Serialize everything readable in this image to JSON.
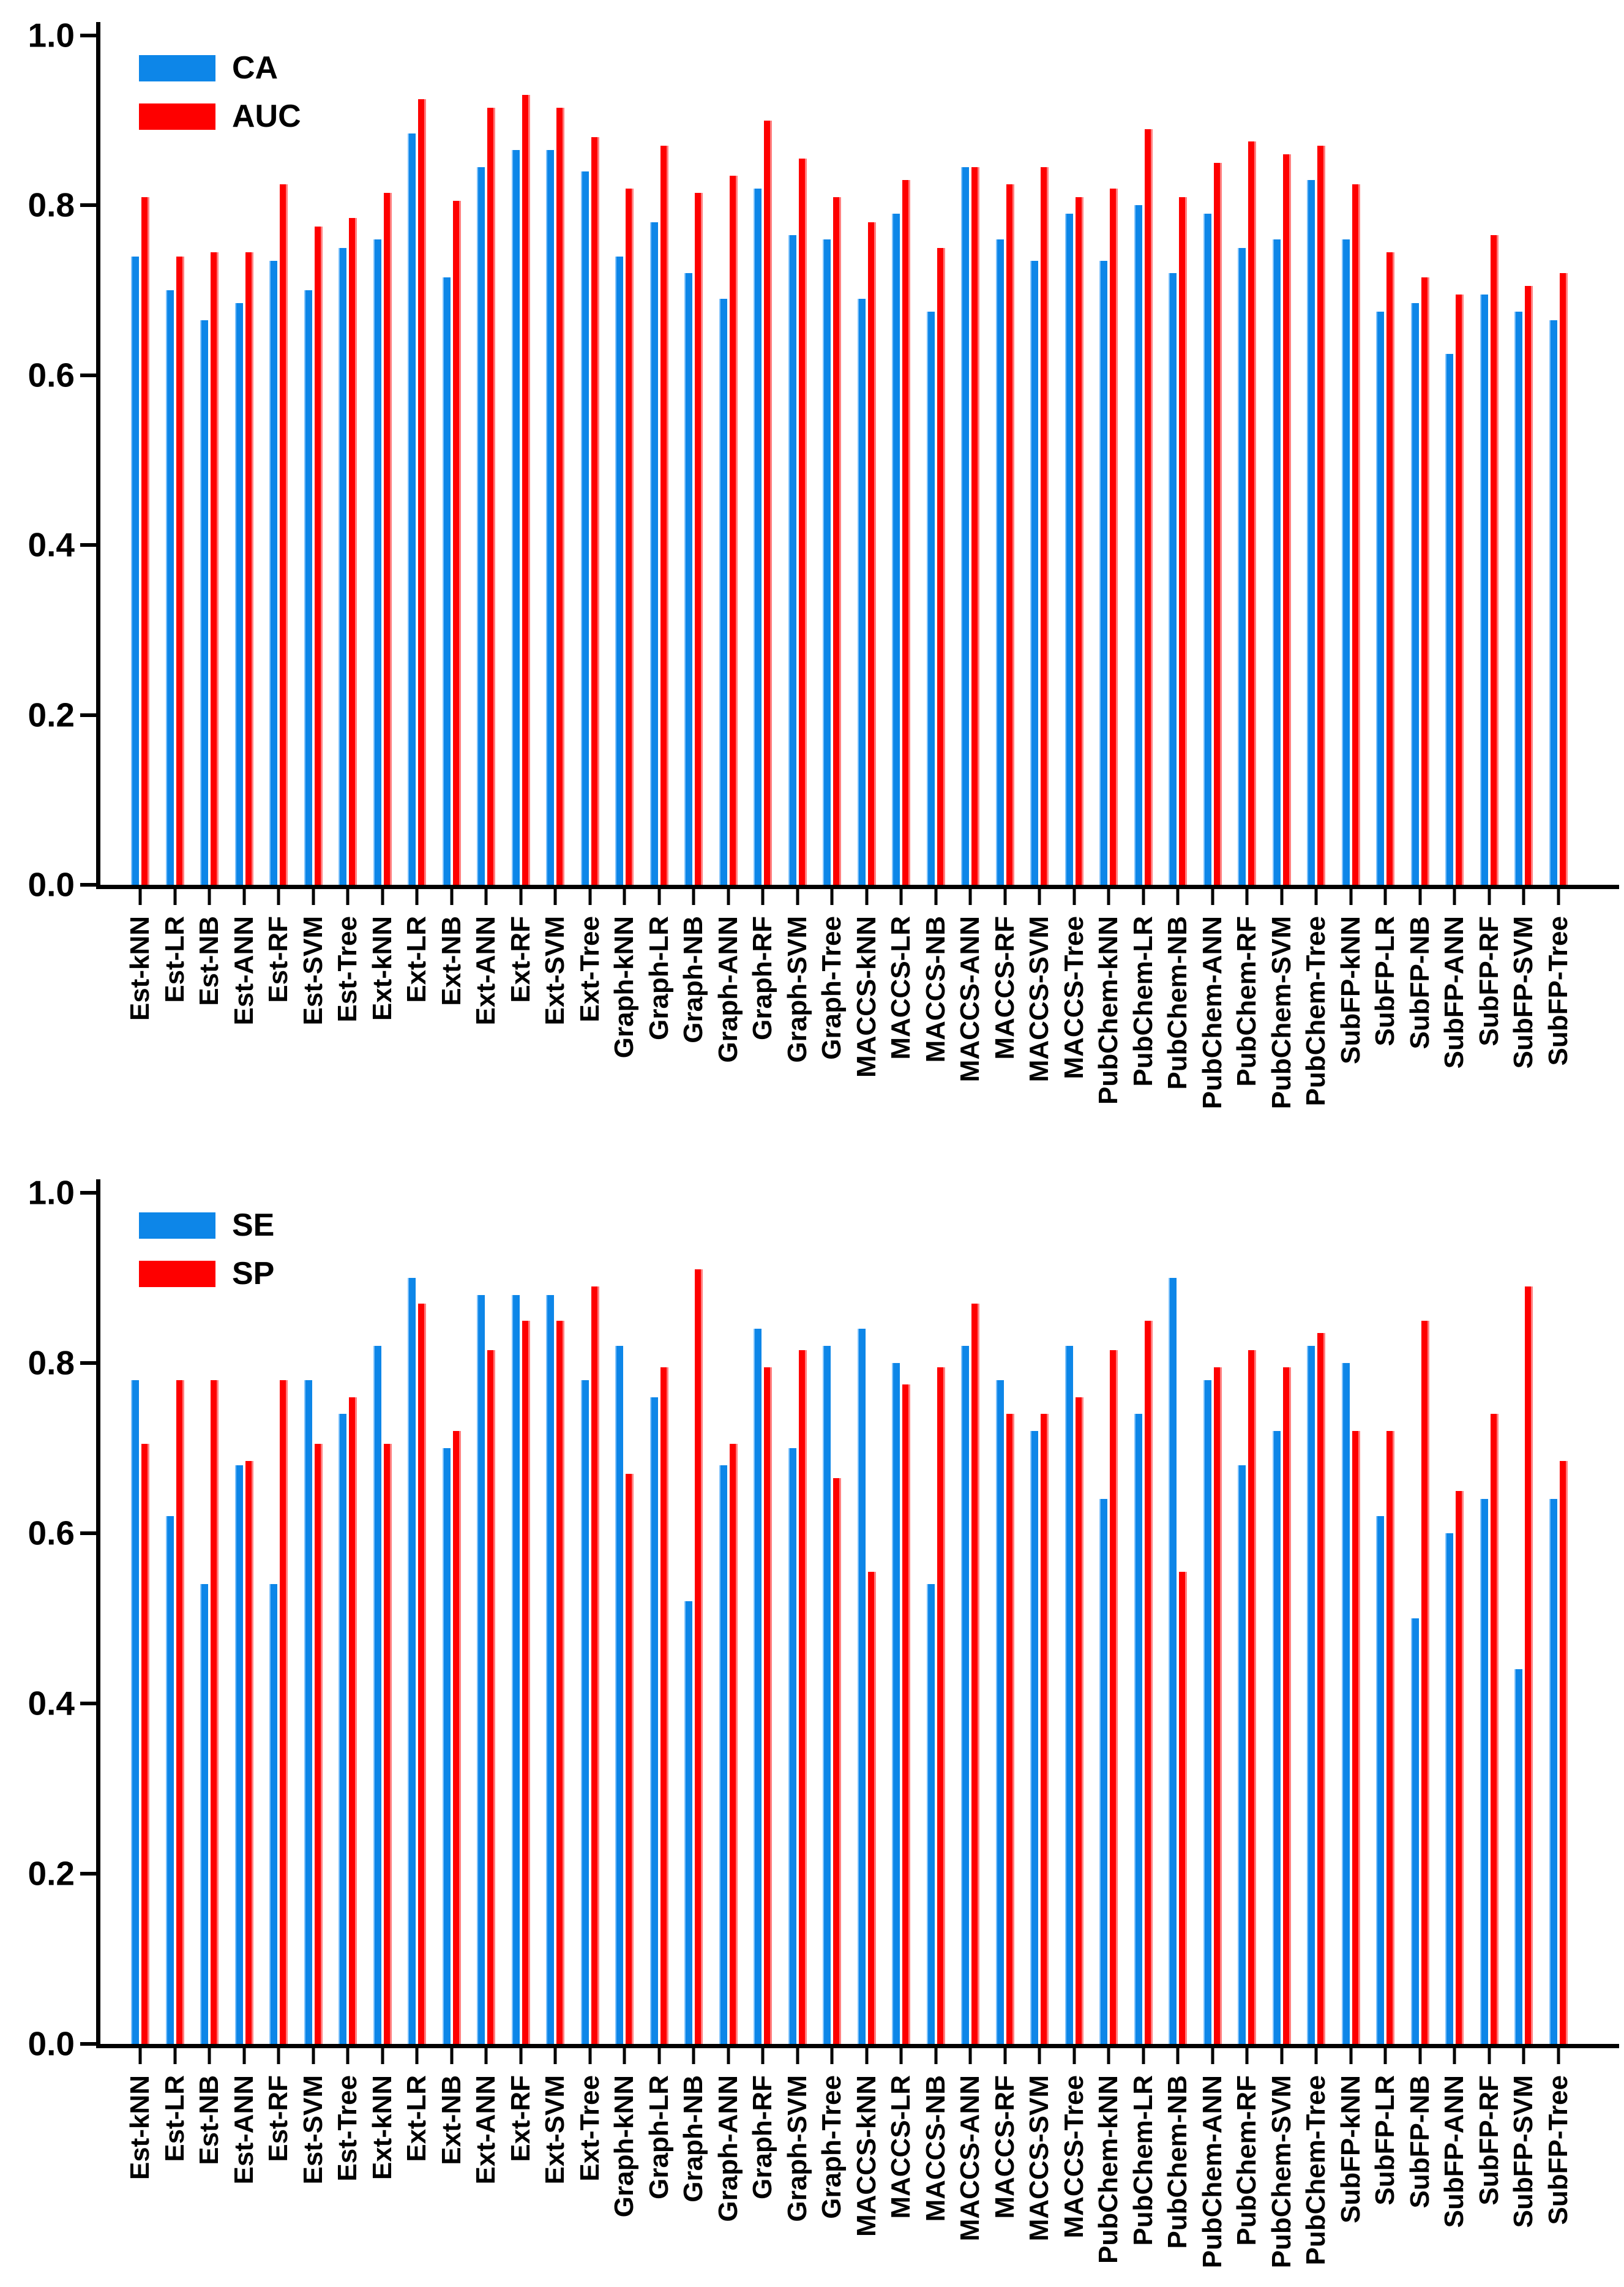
{
  "colors": {
    "series_blue": "#0d86e8",
    "series_red": "#fe0000",
    "axis": "#000000",
    "background": "#ffffff"
  },
  "chart_data": [
    {
      "type": "bar",
      "title": "",
      "xlabel": "",
      "ylabel": "",
      "ylim": [
        0.0,
        1.0
      ],
      "yticks": [
        "0.0",
        "0.2",
        "0.4",
        "0.6",
        "0.8",
        "1.0"
      ],
      "grid": false,
      "legend_position": "top-left",
      "categories": [
        "Est-kNN",
        "Est-LR",
        "Est-NB",
        "Est-ANN",
        "Est-RF",
        "Est-SVM",
        "Est-Tree",
        "Ext-kNN",
        "Ext-LR",
        "Ext-NB",
        "Ext-ANN",
        "Ext-RF",
        "Ext-SVM",
        "Ext-Tree",
        "Graph-kNN",
        "Graph-LR",
        "Graph-NB",
        "Graph-ANN",
        "Graph-RF",
        "Graph-SVM",
        "Graph-Tree",
        "MACCS-kNN",
        "MACCS-LR",
        "MACCS-NB",
        "MACCS-ANN",
        "MACCS-RF",
        "MACCS-SVM",
        "MACCS-Tree",
        "PubChem-kNN",
        "PubChem-LR",
        "PubChem-NB",
        "PubChem-ANN",
        "PubChem-RF",
        "PubChem-SVM",
        "PubChem-Tree",
        "SubFP-kNN",
        "SubFP-LR",
        "SubFP-NB",
        "SubFP-ANN",
        "SubFP-RF",
        "SubFP-SVM",
        "SubFP-Tree"
      ],
      "series": [
        {
          "name": "CA",
          "color": "#0d86e8",
          "values": [
            0.74,
            0.7,
            0.665,
            0.685,
            0.735,
            0.7,
            0.75,
            0.76,
            0.885,
            0.715,
            0.845,
            0.865,
            0.865,
            0.84,
            0.74,
            0.78,
            0.72,
            0.69,
            0.82,
            0.765,
            0.76,
            0.69,
            0.79,
            0.675,
            0.845,
            0.76,
            0.735,
            0.79,
            0.735,
            0.8,
            0.72,
            0.79,
            0.75,
            0.76,
            0.83,
            0.76,
            0.675,
            0.685,
            0.625,
            0.695,
            0.675,
            0.665
          ]
        },
        {
          "name": "AUC",
          "color": "#fe0000",
          "values": [
            0.81,
            0.74,
            0.745,
            0.745,
            0.825,
            0.775,
            0.785,
            0.815,
            0.925,
            0.805,
            0.915,
            0.93,
            0.915,
            0.88,
            0.82,
            0.87,
            0.815,
            0.835,
            0.9,
            0.855,
            0.81,
            0.78,
            0.83,
            0.75,
            0.845,
            0.825,
            0.845,
            0.81,
            0.82,
            0.89,
            0.81,
            0.85,
            0.875,
            0.86,
            0.87,
            0.825,
            0.745,
            0.715,
            0.695,
            0.765,
            0.705,
            0.72
          ]
        }
      ]
    },
    {
      "type": "bar",
      "title": "",
      "xlabel": "",
      "ylabel": "",
      "ylim": [
        0.0,
        1.0
      ],
      "yticks": [
        "0.0",
        "0.2",
        "0.4",
        "0.6",
        "0.8",
        "1.0"
      ],
      "grid": false,
      "legend_position": "top-left",
      "categories": [
        "Est-kNN",
        "Est-LR",
        "Est-NB",
        "Est-ANN",
        "Est-RF",
        "Est-SVM",
        "Est-Tree",
        "Ext-kNN",
        "Ext-LR",
        "Ext-NB",
        "Ext-ANN",
        "Ext-RF",
        "Ext-SVM",
        "Ext-Tree",
        "Graph-kNN",
        "Graph-LR",
        "Graph-NB",
        "Graph-ANN",
        "Graph-RF",
        "Graph-SVM",
        "Graph-Tree",
        "MACCS-kNN",
        "MACCS-LR",
        "MACCS-NB",
        "MACCS-ANN",
        "MACCS-RF",
        "MACCS-SVM",
        "MACCS-Tree",
        "PubChem-kNN",
        "PubChem-LR",
        "PubChem-NB",
        "PubChem-ANN",
        "PubChem-RF",
        "PubChem-SVM",
        "PubChem-Tree",
        "SubFP-kNN",
        "SubFP-LR",
        "SubFP-NB",
        "SubFP-ANN",
        "SubFP-RF",
        "SubFP-SVM",
        "SubFP-Tree"
      ],
      "series": [
        {
          "name": "SE",
          "color": "#0d86e8",
          "values": [
            0.78,
            0.62,
            0.54,
            0.68,
            0.54,
            0.78,
            0.74,
            0.82,
            0.9,
            0.7,
            0.88,
            0.88,
            0.88,
            0.78,
            0.82,
            0.76,
            0.52,
            0.68,
            0.84,
            0.7,
            0.82,
            0.84,
            0.8,
            0.54,
            0.82,
            0.78,
            0.72,
            0.82,
            0.64,
            0.74,
            0.9,
            0.78,
            0.68,
            0.72,
            0.82,
            0.8,
            0.62,
            0.5,
            0.6,
            0.64,
            0.44,
            0.64
          ]
        },
        {
          "name": "SP",
          "color": "#fe0000",
          "values": [
            0.705,
            0.78,
            0.78,
            0.685,
            0.78,
            0.705,
            0.76,
            0.705,
            0.87,
            0.72,
            0.815,
            0.85,
            0.85,
            0.89,
            0.67,
            0.795,
            0.91,
            0.705,
            0.795,
            0.815,
            0.665,
            0.555,
            0.775,
            0.795,
            0.87,
            0.74,
            0.74,
            0.76,
            0.815,
            0.85,
            0.555,
            0.795,
            0.815,
            0.795,
            0.835,
            0.72,
            0.72,
            0.85,
            0.65,
            0.74,
            0.89,
            0.685
          ]
        }
      ]
    }
  ]
}
